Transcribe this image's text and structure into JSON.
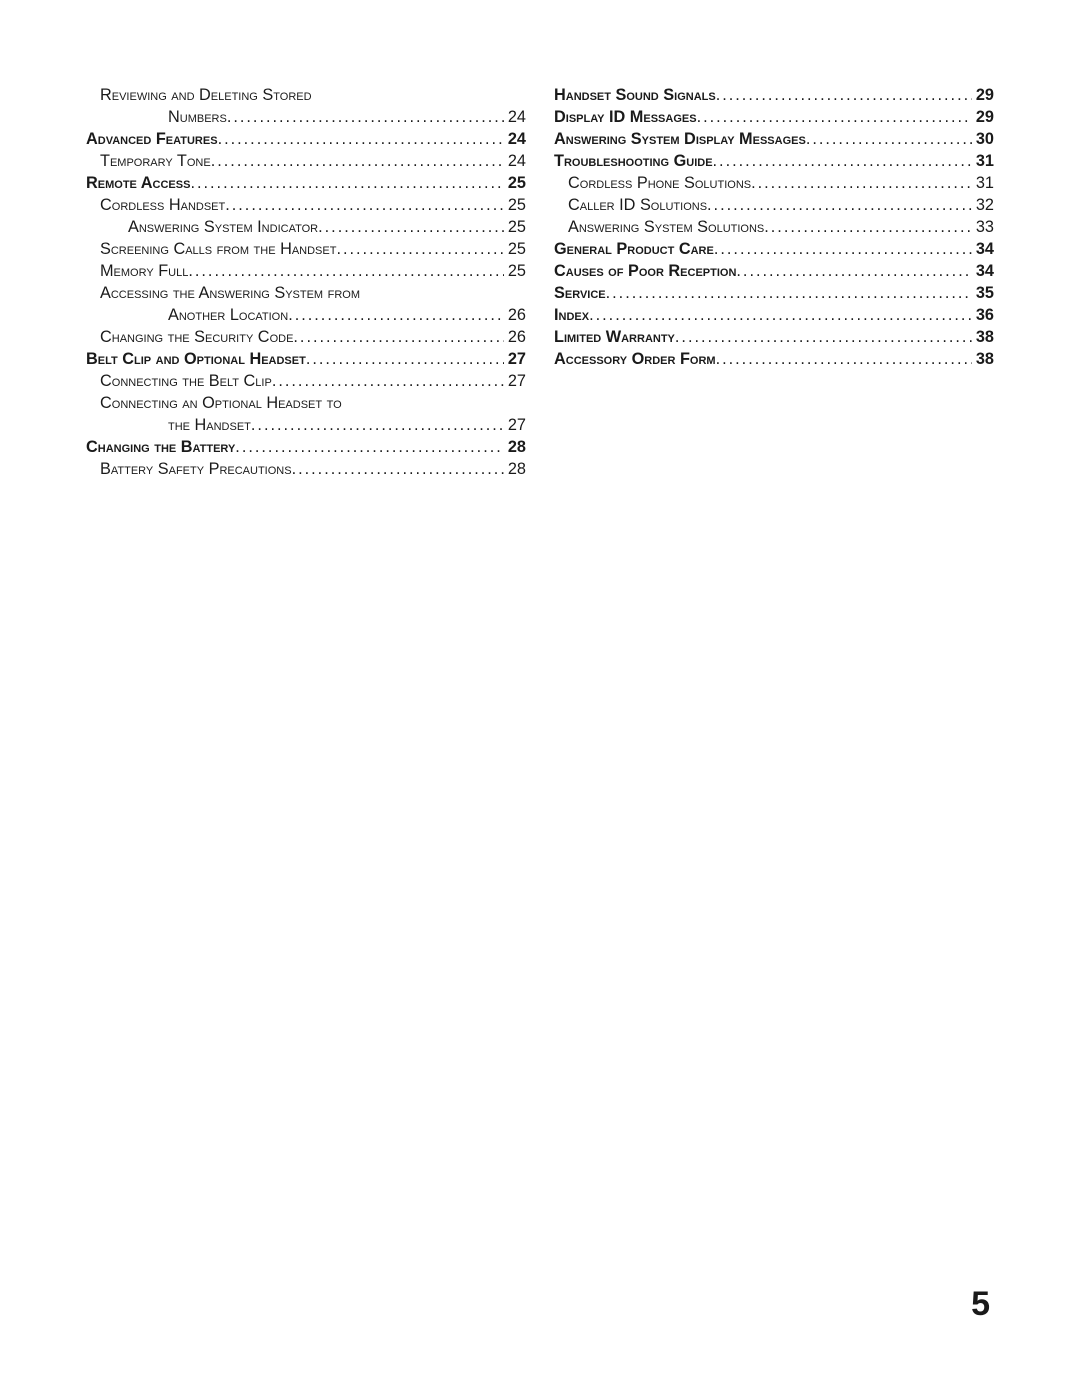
{
  "page_number": "5",
  "columns": [
    [
      {
        "level": 1,
        "text": "Reviewing and Deleting Stored",
        "page": ""
      },
      {
        "level": 3,
        "text": "Numbers",
        "page": "24"
      },
      {
        "level": 0,
        "text": "Advanced Features",
        "page": "24"
      },
      {
        "level": 1,
        "text": "Temporary Tone",
        "page": "24"
      },
      {
        "level": 0,
        "text": "Remote Access",
        "page": "25"
      },
      {
        "level": 1,
        "text": "Cordless Handset",
        "page": "25"
      },
      {
        "level": 2,
        "text": "Answering System Indicator",
        "page": "25"
      },
      {
        "level": 1,
        "text": "Screening Calls from the Handset",
        "page": "25"
      },
      {
        "level": 1,
        "text": "Memory Full",
        "page": "25"
      },
      {
        "level": 1,
        "text": "Accessing the Answering System from",
        "page": ""
      },
      {
        "level": 3,
        "text": "Another Location",
        "page": "26"
      },
      {
        "level": 1,
        "text": "Changing the Security Code",
        "page": "26"
      },
      {
        "level": 0,
        "text": "Belt Clip and Optional Headset",
        "page": "27"
      },
      {
        "level": 1,
        "text": "Connecting the Belt Clip",
        "page": "27"
      },
      {
        "level": 1,
        "text": "Connecting an Optional Headset to",
        "page": ""
      },
      {
        "level": 3,
        "text": "the Handset",
        "page": "27"
      },
      {
        "level": 0,
        "text": "Changing the Battery",
        "page": "28"
      },
      {
        "level": 1,
        "text": "Battery Safety Precautions",
        "page": "28"
      }
    ],
    [
      {
        "level": 0,
        "text": "Handset Sound Signals",
        "page": "29"
      },
      {
        "level": 0,
        "text": "Display ID Messages",
        "page": "29"
      },
      {
        "level": 0,
        "text": "Answering System Display Messages",
        "page": "30"
      },
      {
        "level": 0,
        "text": "Troubleshooting Guide",
        "page": "31"
      },
      {
        "level": 1,
        "text": "Cordless Phone Solutions",
        "page": "31"
      },
      {
        "level": 1,
        "text": "Caller ID Solutions",
        "page": "32"
      },
      {
        "level": 1,
        "text": "Answering System Solutions",
        "page": "33"
      },
      {
        "level": 0,
        "text": "General Product Care",
        "page": "34"
      },
      {
        "level": 0,
        "text": "Causes of Poor Reception",
        "page": "34"
      },
      {
        "level": 0,
        "text": "Service",
        "page": "35"
      },
      {
        "level": 0,
        "text": "Index",
        "page": "36"
      },
      {
        "level": 0,
        "text": "Limited Warranty",
        "page": "38"
      },
      {
        "level": 0,
        "text": "Accessory Order Form",
        "page": "38"
      }
    ]
  ]
}
